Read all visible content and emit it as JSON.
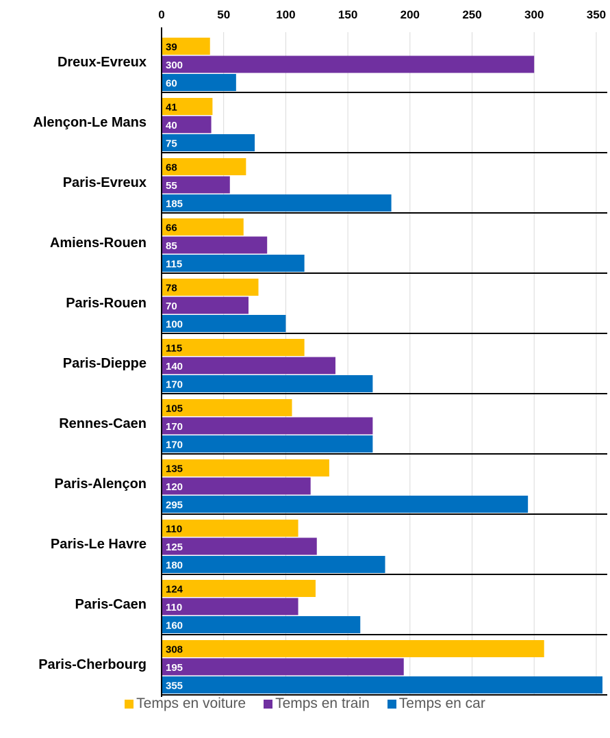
{
  "chart_data": {
    "type": "bar",
    "orientation": "horizontal",
    "categories": [
      "Dreux-Evreux",
      "Alençon-Le Mans",
      "Paris-Evreux",
      "Amiens-Rouen",
      "Paris-Rouen",
      "Paris-Dieppe",
      "Rennes-Caen",
      "Paris-Alençon",
      "Paris-Le Havre",
      "Paris-Caen",
      "Paris-Cherbourg"
    ],
    "series": [
      {
        "name": "Temps en voiture",
        "color": "#FFC000",
        "label_color": "#000000",
        "values": [
          39,
          41,
          68,
          66,
          78,
          115,
          105,
          135,
          110,
          124,
          308
        ]
      },
      {
        "name": "Temps en train",
        "color": "#7030A0",
        "label_color": "#FFFFFF",
        "values": [
          300,
          40,
          55,
          85,
          70,
          140,
          170,
          120,
          125,
          110,
          195
        ]
      },
      {
        "name": "Temps en car",
        "color": "#0070C0",
        "label_color": "#FFFFFF",
        "values": [
          60,
          75,
          185,
          115,
          100,
          170,
          170,
          295,
          180,
          160,
          355
        ]
      }
    ],
    "xlim": [
      0,
      355
    ],
    "xticks": [
      0,
      50,
      100,
      150,
      200,
      250,
      300,
      350
    ],
    "x_axis_position": "top",
    "grid": true,
    "legend_position": "bottom",
    "title": "",
    "xlabel": "",
    "ylabel": ""
  }
}
